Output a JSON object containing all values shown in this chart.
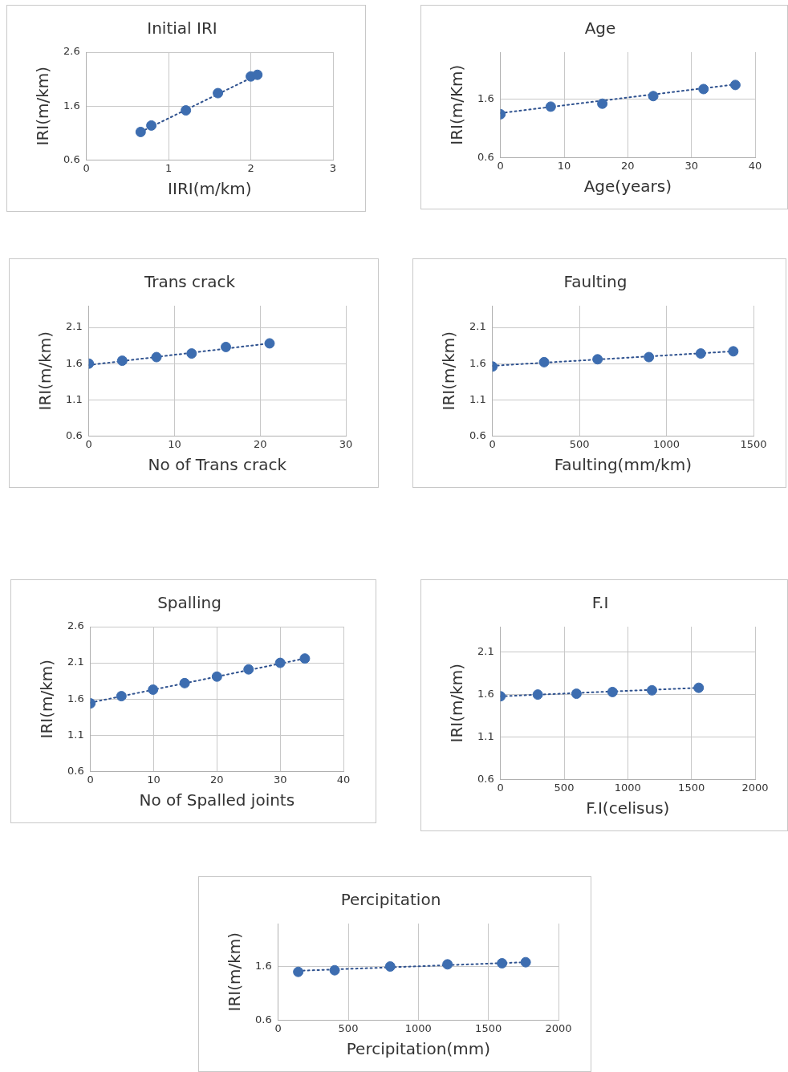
{
  "chart_data": [
    {
      "type": "scatter",
      "title": "Initial IRI",
      "xlabel": "IIRI(m/km)",
      "ylabel": "IRI(m/km)",
      "xlim": [
        0,
        3
      ],
      "xticks": [
        0,
        1,
        2,
        3
      ],
      "ylim": [
        0.6,
        2.6
      ],
      "yticks": [
        0.6,
        1.6,
        2.6
      ],
      "grid": true,
      "series": [
        {
          "marker": "circle",
          "color": "#3d6db0",
          "x": [
            0.66,
            0.79,
            1.21,
            1.6,
            2.0,
            2.08
          ],
          "values": [
            1.12,
            1.24,
            1.52,
            1.84,
            2.15,
            2.18
          ]
        },
        {
          "type": "line",
          "marker": "none",
          "line_style": "dotted",
          "color": "#2f528f",
          "x": [
            0.66,
            2.08
          ],
          "values": [
            1.12,
            2.18
          ]
        }
      ]
    },
    {
      "type": "scatter",
      "title": "Age",
      "xlabel": "Age(years)",
      "ylabel": "IRI(m/Km)",
      "xlim": [
        0,
        40
      ],
      "xticks": [
        0,
        10,
        20,
        30,
        40
      ],
      "ylim": [
        0.6,
        2.4
      ],
      "yticks": [
        0.6,
        1.6
      ],
      "grid": true,
      "series": [
        {
          "marker": "circle",
          "color": "#3d6db0",
          "x": [
            0,
            7.9,
            16,
            24,
            31.9,
            36.9
          ],
          "values": [
            1.34,
            1.47,
            1.52,
            1.65,
            1.77,
            1.84
          ]
        },
        {
          "type": "line",
          "marker": "none",
          "line_style": "dotted",
          "color": "#2f528f",
          "x": [
            0,
            36.9
          ],
          "values": [
            1.36,
            1.85
          ]
        }
      ]
    },
    {
      "type": "scatter",
      "title": "Trans crack",
      "xlabel": "No of Trans crack",
      "ylabel": "IRI(m/km)",
      "xlim": [
        0,
        30
      ],
      "xticks": [
        0,
        10,
        20,
        30
      ],
      "ylim": [
        0.6,
        2.4
      ],
      "yticks": [
        0.6,
        1.1,
        1.6,
        2.1
      ],
      "grid": true,
      "series": [
        {
          "marker": "circle",
          "color": "#3d6db0",
          "x": [
            0,
            3.9,
            7.9,
            12,
            16,
            21.1
          ],
          "values": [
            1.6,
            1.64,
            1.69,
            1.74,
            1.83,
            1.88
          ]
        },
        {
          "type": "line",
          "marker": "none",
          "line_style": "dotted",
          "color": "#2f528f",
          "x": [
            0,
            21.1
          ],
          "values": [
            1.58,
            1.88
          ]
        }
      ]
    },
    {
      "type": "scatter",
      "title": "Faulting",
      "xlabel": "Faulting(mm/km)",
      "ylabel": "IRI(m/km)",
      "xlim": [
        0,
        1500
      ],
      "xticks": [
        0,
        500,
        1000,
        1500
      ],
      "ylim": [
        0.6,
        2.4
      ],
      "yticks": [
        0.6,
        1.1,
        1.6,
        2.1
      ],
      "grid": true,
      "series": [
        {
          "marker": "circle",
          "color": "#3d6db0",
          "x": [
            0,
            297,
            604,
            899,
            1197,
            1384
          ],
          "values": [
            1.56,
            1.62,
            1.66,
            1.69,
            1.74,
            1.77
          ]
        },
        {
          "type": "line",
          "marker": "none",
          "line_style": "dotted",
          "color": "#2f528f",
          "x": [
            0,
            1384
          ],
          "values": [
            1.57,
            1.77
          ]
        }
      ]
    },
    {
      "type": "scatter",
      "title": "Spalling",
      "xlabel": "No of Spalled joints",
      "ylabel": "IRI(m/km)",
      "xlim": [
        0,
        40
      ],
      "xticks": [
        0,
        10,
        20,
        30,
        40
      ],
      "ylim": [
        0.6,
        2.6
      ],
      "yticks": [
        0.6,
        1.1,
        1.6,
        2.1,
        2.6
      ],
      "grid": true,
      "series": [
        {
          "marker": "circle",
          "color": "#3d6db0",
          "x": [
            0,
            4.9,
            9.9,
            14.9,
            20,
            25,
            30,
            33.9
          ],
          "values": [
            1.54,
            1.64,
            1.73,
            1.82,
            1.91,
            2.01,
            2.1,
            2.16
          ]
        },
        {
          "type": "line",
          "marker": "none",
          "line_style": "dotted",
          "color": "#2f528f",
          "x": [
            0,
            33.9
          ],
          "values": [
            1.55,
            2.16
          ]
        }
      ]
    },
    {
      "type": "scatter",
      "title": "F.I",
      "xlabel": "F.I(celisus)",
      "ylabel": "IRI(m/km)",
      "xlim": [
        0,
        2000
      ],
      "xticks": [
        0,
        500,
        1000,
        1500,
        2000
      ],
      "ylim": [
        0.6,
        2.4
      ],
      "yticks": [
        0.6,
        1.1,
        1.6,
        2.1
      ],
      "grid": true,
      "series": [
        {
          "marker": "circle",
          "color": "#3d6db0",
          "x": [
            0,
            293,
            597,
            880,
            1190,
            1557
          ],
          "values": [
            1.58,
            1.6,
            1.61,
            1.63,
            1.65,
            1.68
          ]
        },
        {
          "type": "line",
          "marker": "none",
          "line_style": "dotted",
          "color": "#2f528f",
          "x": [
            0,
            1557
          ],
          "values": [
            1.58,
            1.68
          ]
        }
      ]
    },
    {
      "type": "scatter",
      "title": "Percipitation",
      "xlabel": "Percipitation(mm)",
      "ylabel": "IRI(m/km)",
      "xlim": [
        0,
        2000
      ],
      "xticks": [
        0,
        500,
        1000,
        1500,
        2000
      ],
      "ylim": [
        0.6,
        2.4
      ],
      "yticks": [
        0.6,
        1.6
      ],
      "grid": true,
      "series": [
        {
          "marker": "circle",
          "color": "#3d6db0",
          "x": [
            143,
            403,
            799,
            1208,
            1597,
            1766
          ],
          "values": [
            1.5,
            1.53,
            1.6,
            1.64,
            1.66,
            1.68
          ]
        },
        {
          "type": "line",
          "marker": "none",
          "line_style": "dotted",
          "color": "#2f528f",
          "x": [
            143,
            1766
          ],
          "values": [
            1.52,
            1.68
          ]
        }
      ]
    }
  ]
}
